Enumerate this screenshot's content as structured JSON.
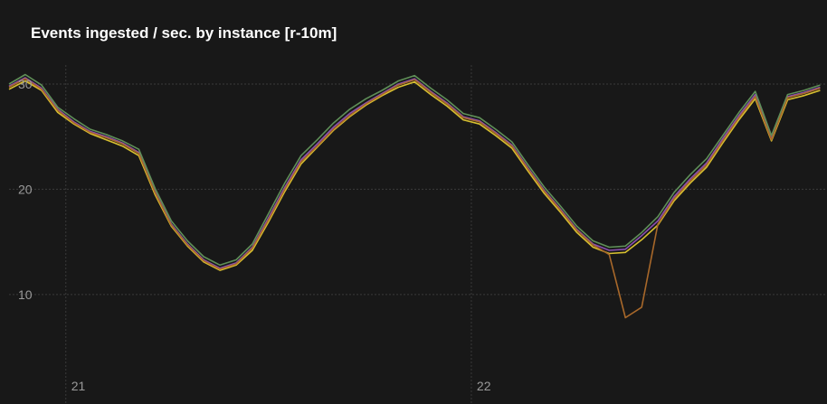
{
  "chart_data": {
    "type": "line",
    "title": "Events ingested / sec. by instance [r-10m]",
    "x": [
      20.86,
      20.9,
      20.94,
      20.98,
      21.02,
      21.06,
      21.1,
      21.14,
      21.18,
      21.22,
      21.26,
      21.3,
      21.34,
      21.38,
      21.42,
      21.46,
      21.5,
      21.54,
      21.58,
      21.62,
      21.66,
      21.7,
      21.74,
      21.78,
      21.82,
      21.86,
      21.9,
      21.94,
      21.98,
      22.02,
      22.06,
      22.1,
      22.14,
      22.18,
      22.22,
      22.26,
      22.3,
      22.34,
      22.38,
      22.42,
      22.46,
      22.5,
      22.54,
      22.58,
      22.62,
      22.66,
      22.7,
      22.74,
      22.78,
      22.82,
      22.86
    ],
    "series": [
      {
        "color": "#d8c030",
        "values": [
          29.5,
          30.3,
          29.4,
          27.3,
          26.2,
          25.3,
          24.7,
          24.1,
          23.2,
          19.5,
          16.5,
          14.6,
          13.1,
          12.3,
          12.8,
          14.2,
          16.9,
          19.8,
          22.4,
          24.0,
          25.6,
          26.9,
          28.0,
          28.9,
          29.7,
          30.2,
          29.0,
          27.9,
          26.6,
          26.2,
          25.1,
          23.9,
          21.7,
          19.6,
          17.8,
          15.9,
          14.5,
          13.9,
          14.0,
          15.2,
          16.6,
          18.9,
          20.6,
          22.1,
          24.4,
          26.6,
          28.6,
          24.6,
          28.5,
          28.9,
          29.4
        ]
      },
      {
        "color": "#8a4fb0",
        "values": [
          29.8,
          30.6,
          29.6,
          27.6,
          26.4,
          25.5,
          25.0,
          24.4,
          23.5,
          19.8,
          16.7,
          14.8,
          13.3,
          12.5,
          13.0,
          14.5,
          17.3,
          20.2,
          22.8,
          24.3,
          25.9,
          27.2,
          28.2,
          29.1,
          30.0,
          30.5,
          29.3,
          28.2,
          26.9,
          26.5,
          25.4,
          24.2,
          22.0,
          19.9,
          18.1,
          16.2,
          14.8,
          14.2,
          14.3,
          15.6,
          17.0,
          19.3,
          21.0,
          22.5,
          24.8,
          27.0,
          29.0,
          24.8,
          28.8,
          29.2,
          29.7
        ]
      },
      {
        "color": "#5f8f58",
        "values": [
          30.0,
          30.9,
          29.9,
          27.8,
          26.7,
          25.7,
          25.2,
          24.6,
          23.8,
          20.1,
          17.0,
          15.1,
          13.6,
          12.8,
          13.3,
          14.8,
          17.7,
          20.6,
          23.2,
          24.7,
          26.3,
          27.6,
          28.6,
          29.4,
          30.3,
          30.8,
          29.6,
          28.5,
          27.2,
          26.8,
          25.7,
          24.5,
          22.3,
          20.2,
          18.4,
          16.5,
          15.1,
          14.5,
          14.6,
          15.9,
          17.4,
          19.7,
          21.4,
          22.9,
          25.1,
          27.3,
          29.3,
          25.1,
          29.0,
          29.4,
          29.9
        ]
      },
      {
        "color": "#a8682a",
        "values": [
          29.7,
          30.5,
          29.5,
          27.5,
          26.3,
          25.4,
          24.9,
          24.3,
          23.4,
          19.7,
          16.6,
          14.7,
          13.2,
          12.4,
          12.9,
          14.4,
          17.1,
          20.0,
          22.6,
          24.1,
          25.7,
          27.0,
          28.1,
          29.0,
          29.9,
          30.4,
          29.2,
          28.1,
          26.8,
          26.4,
          25.3,
          24.1,
          21.9,
          19.8,
          18.0,
          16.1,
          14.7,
          13.8,
          7.8,
          8.8,
          16.7,
          19.1,
          20.8,
          22.3,
          24.6,
          26.8,
          28.8,
          24.7,
          28.7,
          29.1,
          29.6
        ]
      }
    ],
    "xlim": [
      20.86,
      22.877
    ],
    "ylim": [
      -0.4,
      31.8
    ],
    "xticks": [
      21,
      22
    ],
    "yticks": [
      10,
      20,
      30
    ],
    "grid": true
  }
}
